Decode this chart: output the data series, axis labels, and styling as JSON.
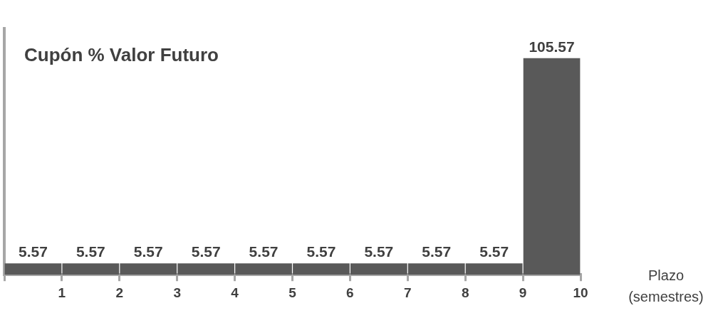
{
  "chart_data": {
    "type": "bar",
    "title": "Cupón % Valor Futuro",
    "xlabel": "Plazo (semestres)",
    "categories": [
      "1",
      "2",
      "3",
      "4",
      "5",
      "6",
      "7",
      "8",
      "9",
      "10"
    ],
    "values": [
      5.57,
      5.57,
      5.57,
      5.57,
      5.57,
      5.57,
      5.57,
      5.57,
      5.57,
      105.57
    ],
    "color": "#595959",
    "data_labels": true,
    "legend": false,
    "grid": false
  }
}
